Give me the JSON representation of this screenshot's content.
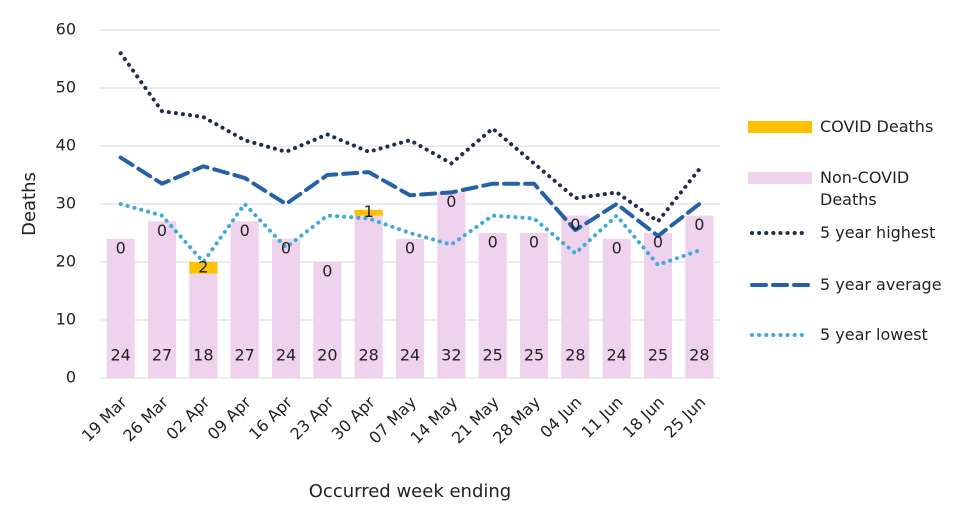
{
  "chart_data": {
    "type": "combo",
    "y_label": "Deaths",
    "x_label": "Occurred week ending",
    "categories": [
      "19 Mar",
      "26 Mar",
      "02 Apr",
      "09 Apr",
      "16 Apr",
      "23 Apr",
      "30 Apr",
      "07 May",
      "14 May",
      "21 May",
      "28 May",
      "04 Jun",
      "11 Jun",
      "18 Jun",
      "25 Jun"
    ],
    "series": [
      {
        "name": "COVID Deaths",
        "type": "bar",
        "color": "#ffc000",
        "values": [
          0,
          0,
          2,
          0,
          0,
          0,
          1,
          0,
          0,
          0,
          0,
          0,
          0,
          0,
          0
        ]
      },
      {
        "name": "Non-COVID Deaths",
        "type": "bar",
        "color": "#efd3ec",
        "values": [
          24,
          27,
          18,
          27,
          24,
          20,
          28,
          24,
          32,
          25,
          25,
          28,
          24,
          25,
          28
        ]
      },
      {
        "name": "5 year highest",
        "type": "line",
        "dash": "dotted",
        "color": "#1f2d4e",
        "values": [
          56,
          46,
          45,
          41,
          39,
          42,
          39,
          41,
          37,
          43,
          37,
          31,
          32,
          27,
          36
        ]
      },
      {
        "name": "5 year average",
        "type": "line",
        "dash": "dashed",
        "color": "#2461a8",
        "values": [
          38,
          33.5,
          36.5,
          34.5,
          30,
          35,
          35.5,
          31.5,
          32,
          33.5,
          33.5,
          25.5,
          30,
          24.5,
          30
        ]
      },
      {
        "name": "5 year lowest",
        "type": "line",
        "dash": "dotted",
        "color": "#3fa9dc",
        "values": [
          30,
          28,
          20,
          30,
          22.5,
          28,
          27.5,
          25,
          23,
          28,
          27.5,
          21.5,
          28,
          19.5,
          22
        ]
      }
    ],
    "ylim": [
      0,
      60
    ],
    "yticks": [
      0,
      10,
      20,
      30,
      40,
      50,
      60
    ],
    "grid": true,
    "legend": "right"
  }
}
